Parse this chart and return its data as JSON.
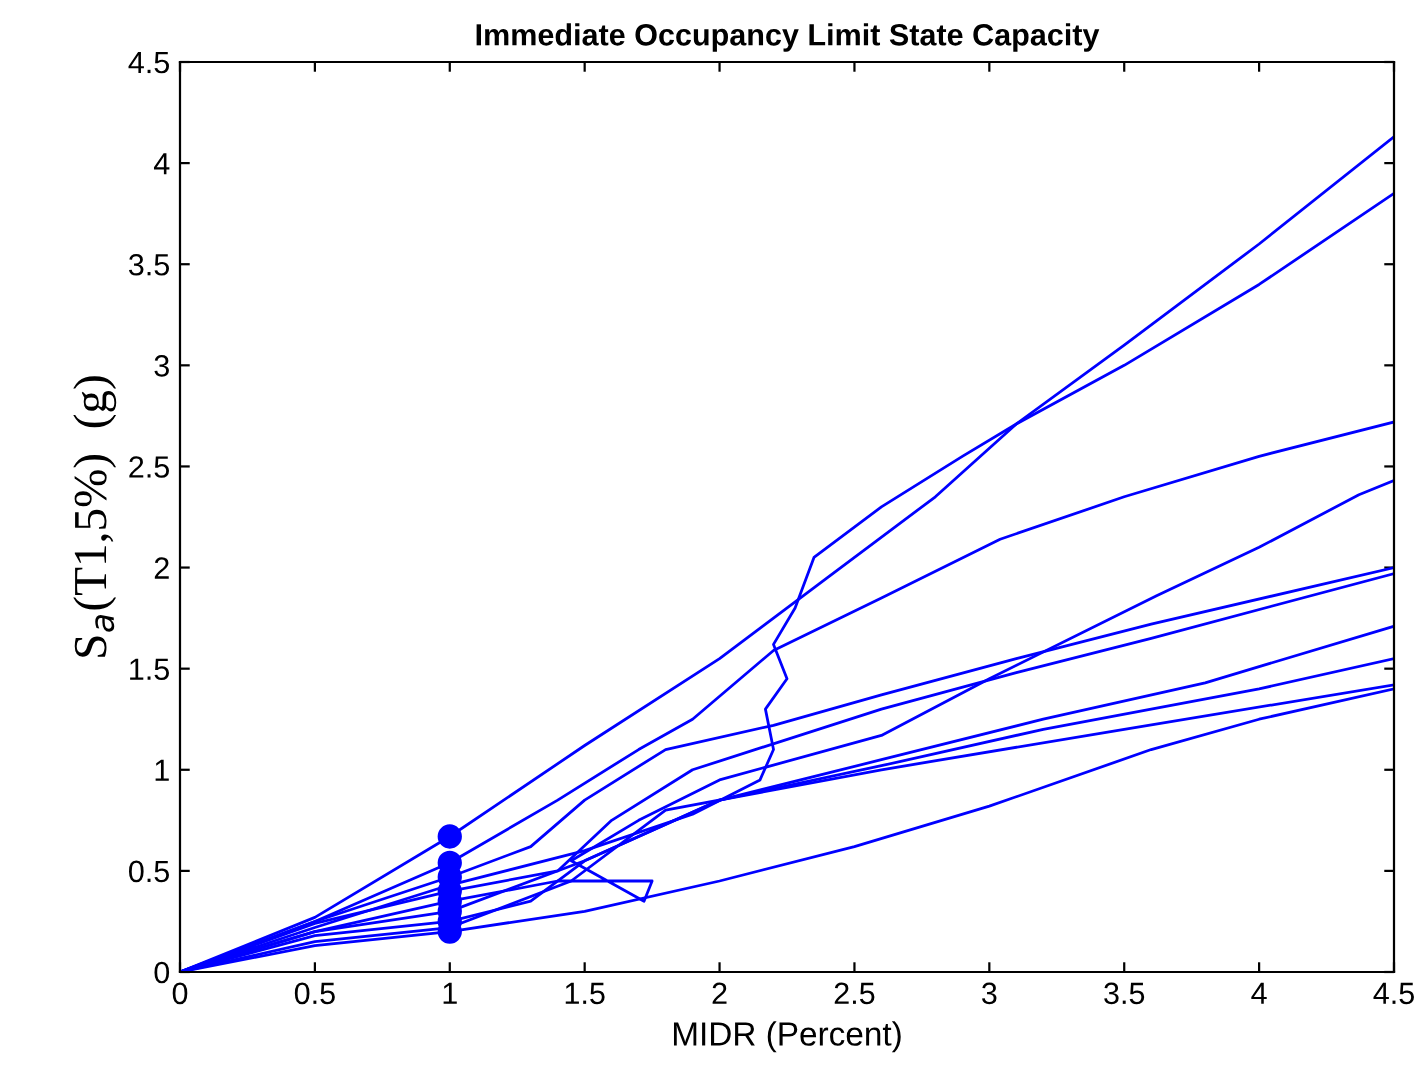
{
  "chart_data": {
    "type": "line",
    "title": "Immediate Occupancy Limit State Capacity",
    "xlabel": "MIDR (Percent)",
    "ylabel": "S$_{a}$(T1,5%)  (g)",
    "xlim": [
      0,
      4.5
    ],
    "ylim": [
      0,
      4.5
    ],
    "xticks": [
      0,
      0.5,
      1,
      1.5,
      2,
      2.5,
      3,
      3.5,
      4,
      4.5
    ],
    "yticks": [
      0,
      0.5,
      1,
      1.5,
      2,
      2.5,
      3,
      3.5,
      4,
      4.5
    ],
    "grid": false,
    "legend": false,
    "series": [
      {
        "color": "#0000ff",
        "x": [
          0,
          0.5,
          1,
          1.5,
          2,
          2.4,
          2.8,
          3.1,
          3.5,
          4,
          4.5
        ],
        "values": [
          0,
          0.27,
          0.67,
          1.12,
          1.55,
          1.95,
          2.35,
          2.71,
          3.0,
          3.4,
          3.85
        ]
      },
      {
        "color": "#0000ff",
        "x": [
          0,
          0.5,
          1,
          1.5,
          1.9,
          2.15,
          2.2,
          2.17,
          2.25,
          2.2,
          2.28,
          2.35,
          2.6,
          2.9,
          3.1,
          3.5,
          4,
          4.5
        ],
        "values": [
          0,
          0.22,
          0.43,
          0.6,
          0.78,
          0.95,
          1.1,
          1.3,
          1.45,
          1.62,
          1.8,
          2.05,
          2.3,
          2.55,
          2.71,
          3.1,
          3.6,
          4.13
        ]
      },
      {
        "color": "#0000ff",
        "x": [
          0,
          0.5,
          1,
          1.4,
          1.7,
          1.9,
          2.2,
          2.6,
          3.04,
          3.5,
          4,
          4.5
        ],
        "values": [
          0,
          0.25,
          0.54,
          0.85,
          1.1,
          1.25,
          1.59,
          1.85,
          2.14,
          2.35,
          2.55,
          2.72
        ]
      },
      {
        "color": "#0000ff",
        "x": [
          0,
          0.5,
          1,
          1.4,
          1.75,
          1.72,
          1.45,
          1.7,
          2.0,
          2.6,
          3.0,
          3.62,
          4.0,
          4.37,
          4.5
        ],
        "values": [
          0,
          0.2,
          0.35,
          0.45,
          0.45,
          0.35,
          0.55,
          0.75,
          0.95,
          1.17,
          1.45,
          1.86,
          2.1,
          2.36,
          2.43
        ]
      },
      {
        "color": "#0000ff",
        "x": [
          0,
          0.5,
          1,
          1.3,
          1.5,
          1.8,
          2.2,
          2.6,
          3.1,
          3.6,
          4.5
        ],
        "values": [
          0,
          0.25,
          0.47,
          0.62,
          0.85,
          1.1,
          1.22,
          1.37,
          1.55,
          1.72,
          2.0
        ]
      },
      {
        "color": "#0000ff",
        "x": [
          0,
          0.5,
          1,
          1.4,
          1.6,
          1.9,
          2.6,
          3.1,
          3.6,
          4.5
        ],
        "values": [
          0,
          0.24,
          0.4,
          0.5,
          0.75,
          1.0,
          1.3,
          1.48,
          1.65,
          1.97
        ]
      },
      {
        "color": "#0000ff",
        "x": [
          0,
          0.5,
          1,
          1.5,
          2.0,
          2.6,
          3.2,
          3.8,
          4.5
        ],
        "values": [
          0,
          0.2,
          0.3,
          0.55,
          0.85,
          1.05,
          1.25,
          1.43,
          1.71
        ]
      },
      {
        "color": "#0000ff",
        "x": [
          0,
          0.5,
          1,
          1.3,
          1.5,
          2.0,
          2.6,
          3.2,
          4,
          4.5
        ],
        "values": [
          0,
          0.18,
          0.25,
          0.35,
          0.55,
          0.85,
          1.02,
          1.2,
          1.4,
          1.55
        ]
      },
      {
        "color": "#0000ff",
        "x": [
          0,
          0.5,
          1,
          1.45,
          1.8,
          2.6,
          3.5,
          4.5
        ],
        "values": [
          0,
          0.15,
          0.22,
          0.45,
          0.8,
          1.0,
          1.2,
          1.42
        ]
      },
      {
        "color": "#0000ff",
        "x": [
          0,
          0.5,
          1,
          1.5,
          2,
          2.5,
          3,
          3.6,
          4,
          4.5
        ],
        "values": [
          0,
          0.13,
          0.2,
          0.3,
          0.45,
          0.62,
          0.82,
          1.1,
          1.25,
          1.4
        ]
      },
      {
        "type": "scatter",
        "color": "#0000ff",
        "marker": "circle",
        "x": [
          1,
          1,
          1,
          1,
          1,
          1,
          1,
          1
        ],
        "values": [
          0.67,
          0.54,
          0.47,
          0.4,
          0.35,
          0.3,
          0.25,
          0.2
        ]
      }
    ]
  }
}
